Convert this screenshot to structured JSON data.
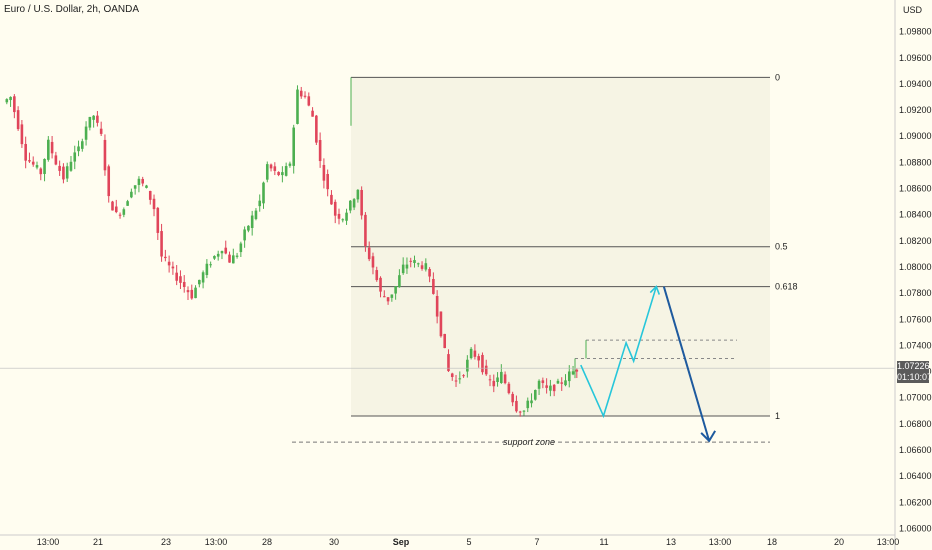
{
  "header": {
    "symbol_title": "Euro / U.S. Dollar, 2h, OANDA"
  },
  "price_axis": {
    "currency": "USD",
    "ticks": [
      "1.09800",
      "1.09600",
      "1.09400",
      "1.09200",
      "1.09000",
      "1.08800",
      "1.08600",
      "1.08400",
      "1.08200",
      "1.08000",
      "1.07800",
      "1.07600",
      "1.07400",
      "1.07200",
      "1.07000",
      "1.06800",
      "1.06600",
      "1.06400",
      "1.06200",
      "1.06000"
    ],
    "current_price": "1.07226",
    "countdown": "01:10:07",
    "badge_color": "#5b5b5b"
  },
  "time_axis": {
    "labels": [
      "13:00",
      "21",
      "23",
      "13:00",
      "28",
      "30",
      "Sep",
      "5",
      "7",
      "11",
      "13",
      "13:00",
      "18",
      "20",
      "13:00"
    ]
  },
  "fibonacci": {
    "levels": [
      {
        "ratio": 0,
        "label": "0",
        "price": 1.0945
      },
      {
        "ratio": 0.5,
        "label": "0.5",
        "price": 1.08155
      },
      {
        "ratio": 0.618,
        "label": "0.618",
        "price": 1.0785
      },
      {
        "ratio": 1,
        "label": "1",
        "price": 1.0686
      }
    ],
    "line_color": "#555555"
  },
  "annotations": {
    "support_zone_label": "support zone",
    "support_zone_price": 1.0666,
    "resistance_box_top": 1.0744,
    "resistance_box_bottom": 1.073
  },
  "colors": {
    "up": "#4caf50",
    "down": "#e0455a",
    "projection_up": "#26c6da",
    "projection_down": "#1e5a9e",
    "background": "#fffdf0"
  },
  "chart_data": {
    "type": "candlestick",
    "title": "Euro / U.S. Dollar, 2h, OANDA",
    "ylabel": "USD",
    "ylim": [
      1.0595,
      1.0995
    ],
    "x_tick_labels": [
      "13:00",
      "21",
      "23",
      "13:00",
      "28",
      "30",
      "Sep",
      "5",
      "7",
      "11",
      "13",
      "13:00",
      "18",
      "20",
      "13:00"
    ],
    "price_path": [
      1.0926,
      1.093,
      1.0908,
      1.0884,
      1.0878,
      1.0872,
      1.0895,
      1.088,
      1.0868,
      1.0882,
      1.089,
      1.0908,
      1.0916,
      1.09,
      1.0852,
      1.084,
      1.0845,
      1.086,
      1.0866,
      1.086,
      1.0845,
      1.0808,
      1.08,
      1.0792,
      1.0785,
      1.0778,
      1.079,
      1.08,
      1.0808,
      1.0815,
      1.0805,
      1.081,
      1.0826,
      1.0838,
      1.085,
      1.0878,
      1.0872,
      1.087,
      1.088,
      1.0935,
      1.093,
      1.0915,
      1.088,
      1.0858,
      1.084,
      1.0838,
      1.0848,
      1.086,
      1.0815,
      1.08,
      1.078,
      1.0775,
      1.0785,
      1.08,
      1.0805,
      1.0802,
      1.08,
      1.078,
      1.075,
      1.072,
      1.0712,
      1.072,
      1.0735,
      1.073,
      1.0715,
      1.071,
      1.0718,
      1.0705,
      1.0692,
      1.069,
      1.07,
      1.0712,
      1.0706,
      1.0708,
      1.0712,
      1.0718,
      1.0722
    ],
    "projection": [
      {
        "x_index": 76,
        "price": 1.0725
      },
      {
        "x_index": 79,
        "price": 1.0686
      },
      {
        "x_index": 82,
        "price": 1.0742
      },
      {
        "x_index": 83,
        "price": 1.0728
      },
      {
        "x_index": 86,
        "price": 1.0785
      },
      {
        "x_index": 87,
        "price": 1.0785
      },
      {
        "x_index": 93,
        "price": 1.0667
      }
    ]
  }
}
